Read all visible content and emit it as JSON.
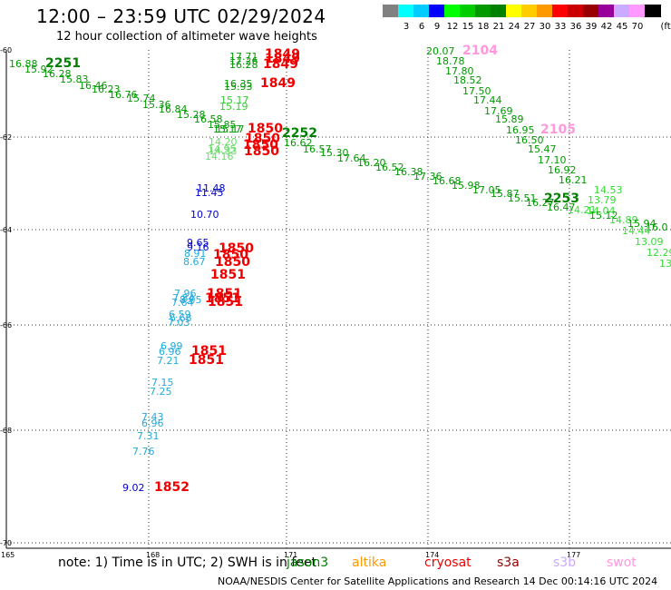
{
  "title": "12:00 – 23:59 UTC 02/29/2024",
  "subtitle": "12 hour collection of altimeter wave heights",
  "colorbar": {
    "unit_label": "(ft)",
    "entries": [
      {
        "label": "",
        "color": "#808080"
      },
      {
        "label": "3",
        "color": "#00ffff"
      },
      {
        "label": "6",
        "color": "#00ccff"
      },
      {
        "label": "9",
        "color": "#0000ff"
      },
      {
        "label": "12",
        "color": "#00ff00"
      },
      {
        "label": "15",
        "color": "#00cc00"
      },
      {
        "label": "18",
        "color": "#009900"
      },
      {
        "label": "21",
        "color": "#008000"
      },
      {
        "label": "24",
        "color": "#ffff00"
      },
      {
        "label": "27",
        "color": "#ffcc00"
      },
      {
        "label": "30",
        "color": "#ff9900"
      },
      {
        "label": "33",
        "color": "#ff0000"
      },
      {
        "label": "36",
        "color": "#cc0000"
      },
      {
        "label": "39",
        "color": "#990000"
      },
      {
        "label": "42",
        "color": "#990099"
      },
      {
        "label": "45",
        "color": "#ccaaff"
      },
      {
        "label": "70",
        "color": "#ff99ff"
      },
      {
        "label": "",
        "color": "#000000"
      }
    ]
  },
  "map": {
    "lon_ticks": [
      "165",
      "168",
      "171",
      "174",
      "177"
    ],
    "lat_ticks": [
      "-60",
      "-62",
      "-64",
      "-66",
      "-68",
      "-70"
    ]
  },
  "observations": [
    {
      "text": "16.88",
      "color": "#009900"
    },
    {
      "text": "2251",
      "color": "#008000"
    },
    {
      "text": "15.92",
      "color": "#009900"
    },
    {
      "text": "16.28",
      "color": "#009900"
    },
    {
      "text": "15.83",
      "color": "#009900"
    },
    {
      "text": "16.46",
      "color": "#009900"
    },
    {
      "text": "16.23",
      "color": "#009900"
    },
    {
      "text": "16.76",
      "color": "#009900"
    },
    {
      "text": "15.74",
      "color": "#009900"
    },
    {
      "text": "15.36",
      "color": "#009900"
    },
    {
      "text": "16.84",
      "color": "#009900"
    },
    {
      "text": "15.28",
      "color": "#009900"
    },
    {
      "text": "16.58",
      "color": "#009900"
    },
    {
      "text": "15.85",
      "color": "#009900"
    },
    {
      "text": "15.17",
      "color": "#009900"
    },
    {
      "text": "2252",
      "color": "#008000"
    },
    {
      "text": "16.62",
      "color": "#009900"
    },
    {
      "text": "16.57",
      "color": "#009900"
    },
    {
      "text": "15.30",
      "color": "#009900"
    },
    {
      "text": "17.64",
      "color": "#009900"
    },
    {
      "text": "16.20",
      "color": "#009900"
    },
    {
      "text": "16.52",
      "color": "#009900"
    },
    {
      "text": "16.38",
      "color": "#009900"
    },
    {
      "text": "17.36",
      "color": "#009900"
    },
    {
      "text": "16.68",
      "color": "#009900"
    },
    {
      "text": "15.98",
      "color": "#009900"
    },
    {
      "text": "17.05",
      "color": "#009900"
    },
    {
      "text": "15.87",
      "color": "#009900"
    },
    {
      "text": "15.51",
      "color": "#009900"
    },
    {
      "text": "16.27",
      "color": "#009900"
    },
    {
      "text": "2253",
      "color": "#008000"
    },
    {
      "text": "16.47",
      "color": "#009900"
    },
    {
      "text": "14.21",
      "color": "#33dd33"
    },
    {
      "text": "14.04",
      "color": "#33dd33"
    },
    {
      "text": "15.12",
      "color": "#009900"
    },
    {
      "text": "14.89",
      "color": "#33dd33"
    },
    {
      "text": "15.94",
      "color": "#009900"
    },
    {
      "text": "16.0",
      "color": "#009900"
    },
    {
      "text": "14.44",
      "color": "#33dd33"
    },
    {
      "text": "13.09",
      "color": "#33dd33"
    },
    {
      "text": "12.29",
      "color": "#33dd33"
    },
    {
      "text": "13",
      "color": "#33dd33"
    },
    {
      "text": "14.53",
      "color": "#33dd33"
    },
    {
      "text": "13.79",
      "color": "#33dd33"
    },
    {
      "text": "20.07",
      "color": "#009900"
    },
    {
      "text": "2104",
      "color": "#ff99dd"
    },
    {
      "text": "18.78",
      "color": "#009900"
    },
    {
      "text": "17.80",
      "color": "#009900"
    },
    {
      "text": "18.52",
      "color": "#009900"
    },
    {
      "text": "17.50",
      "color": "#009900"
    },
    {
      "text": "17.44",
      "color": "#009900"
    },
    {
      "text": "17.69",
      "color": "#009900"
    },
    {
      "text": "15.89",
      "color": "#009900"
    },
    {
      "text": "16.95",
      "color": "#009900"
    },
    {
      "text": "2105",
      "color": "#ff99dd"
    },
    {
      "text": "16.50",
      "color": "#009900"
    },
    {
      "text": "15.47",
      "color": "#009900"
    },
    {
      "text": "17.10",
      "color": "#009900"
    },
    {
      "text": "16.92",
      "color": "#009900"
    },
    {
      "text": "16.21",
      "color": "#009900"
    },
    {
      "text": "17.71",
      "color": "#009900"
    },
    {
      "text": "17.26",
      "color": "#009900"
    },
    {
      "text": "16.28",
      "color": "#009900"
    },
    {
      "text": "1849",
      "color": "#ee0000"
    },
    {
      "text": "1849",
      "color": "#ee0000"
    },
    {
      "text": "1849",
      "color": "#ee0000"
    },
    {
      "text": "16.35",
      "color": "#009900"
    },
    {
      "text": "15.93",
      "color": "#009900"
    },
    {
      "text": "1849",
      "color": "#ee0000"
    },
    {
      "text": "15.17",
      "color": "#33cc33"
    },
    {
      "text": "15.19",
      "color": "#33cc33"
    },
    {
      "text": "15.17",
      "color": "#009900"
    },
    {
      "text": "1850",
      "color": "#ee0000"
    },
    {
      "text": "1850",
      "color": "#ee0000"
    },
    {
      "text": "1850",
      "color": "#ee0000"
    },
    {
      "text": "1850",
      "color": "#ee0000"
    },
    {
      "text": "14.20",
      "color": "#66dd66"
    },
    {
      "text": "14.95",
      "color": "#66dd66"
    },
    {
      "text": "14.33",
      "color": "#66dd66"
    },
    {
      "text": "14.16",
      "color": "#66dd66"
    },
    {
      "text": "11.48",
      "color": "#0000cc"
    },
    {
      "text": "11.45",
      "color": "#0000cc"
    },
    {
      "text": "10.70",
      "color": "#0000cc"
    },
    {
      "text": "9.65",
      "color": "#0000cc"
    },
    {
      "text": "9.16",
      "color": "#0000cc"
    },
    {
      "text": "8.91",
      "color": "#22aadd"
    },
    {
      "text": "8.67",
      "color": "#22aadd"
    },
    {
      "text": "1850",
      "color": "#ee0000"
    },
    {
      "text": "1850",
      "color": "#ee0000"
    },
    {
      "text": "1850",
      "color": "#ee0000"
    },
    {
      "text": "8.05",
      "color": "#22aadd"
    },
    {
      "text": "1851",
      "color": "#ee0000"
    },
    {
      "text": "7.96",
      "color": "#22aadd"
    },
    {
      "text": "7.84",
      "color": "#22aadd"
    },
    {
      "text": "7.64",
      "color": "#22aadd"
    },
    {
      "text": "1851",
      "color": "#ee0000"
    },
    {
      "text": "1851",
      "color": "#ee0000"
    },
    {
      "text": "1851",
      "color": "#ee0000"
    },
    {
      "text": "6.59",
      "color": "#22aadd"
    },
    {
      "text": "6.68",
      "color": "#22aadd"
    },
    {
      "text": "7.03",
      "color": "#22aadd"
    },
    {
      "text": "6.99",
      "color": "#22aadd"
    },
    {
      "text": "6.96",
      "color": "#22aadd"
    },
    {
      "text": "1851",
      "color": "#ee0000"
    },
    {
      "text": "7.21",
      "color": "#22aadd"
    },
    {
      "text": "1851",
      "color": "#ee0000"
    },
    {
      "text": "7.15",
      "color": "#22aadd"
    },
    {
      "text": "7.25",
      "color": "#22aadd"
    },
    {
      "text": "7.43",
      "color": "#22aadd"
    },
    {
      "text": "6.96",
      "color": "#22aadd"
    },
    {
      "text": "7.31",
      "color": "#22aadd"
    },
    {
      "text": "7.76",
      "color": "#22aadd"
    },
    {
      "text": "9.02",
      "color": "#0000cc"
    },
    {
      "text": "1852",
      "color": "#ee0000"
    }
  ],
  "legend": {
    "note": "note:  1) Time is in UTC; 2) SWH is in feet",
    "satellites": [
      {
        "name": "jason3",
        "color": "#008000"
      },
      {
        "name": "altika",
        "color": "#ff9900"
      },
      {
        "name": "cryosat",
        "color": "#ee0000"
      },
      {
        "name": "s3a",
        "color": "#990000"
      },
      {
        "name": "s3b",
        "color": "#ccaaff"
      },
      {
        "name": "swot",
        "color": "#ff99dd"
      }
    ]
  },
  "credit": "NOAA/NESDIS Center for Satellite Applications and Research    14 Dec 00:14:16 UTC 2024"
}
